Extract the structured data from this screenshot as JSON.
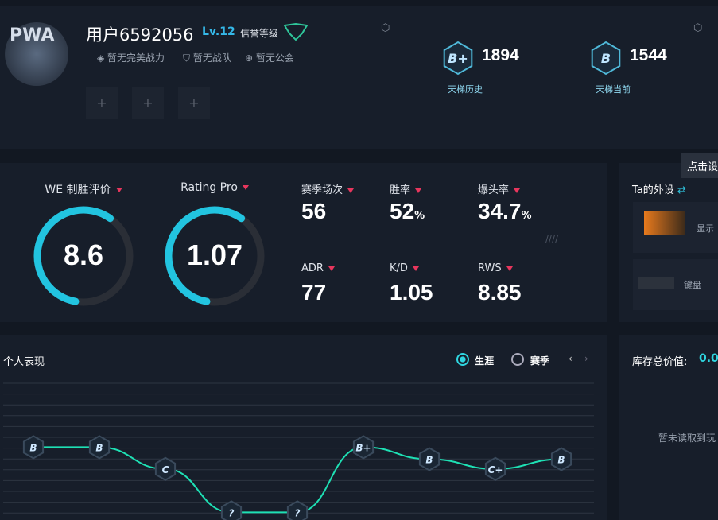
{
  "profile": {
    "avatar_text": "PWA",
    "name": "用户6592056",
    "level": "Lv.12",
    "reputation": "信誉等级",
    "tags": [
      "暂无完美战力",
      "暂无战队",
      "暂无公会"
    ]
  },
  "ladder": [
    {
      "grade": "B+",
      "score": "1894",
      "label": "天梯历史"
    },
    {
      "grade": "B",
      "score": "1544",
      "label": "天梯当前"
    }
  ],
  "ratings": [
    {
      "label": "WE 制胜评价",
      "value": "8.6"
    },
    {
      "label": "Rating Pro",
      "value": "1.07"
    }
  ],
  "stats": [
    {
      "label": "赛季场次",
      "value": "56"
    },
    {
      "label": "胜率",
      "value": "52",
      "unit": "%"
    },
    {
      "label": "爆头率",
      "value": "34.7",
      "unit": "%"
    },
    {
      "label": "ADR",
      "value": "77"
    },
    {
      "label": "K/D",
      "value": "1.05"
    },
    {
      "label": "RWS",
      "value": "8.85"
    }
  ],
  "gear": {
    "title": "Ta的外设",
    "tooltip": "点击设",
    "items": [
      "显示",
      "键盘"
    ]
  },
  "inventory": {
    "label": "库存总价值:",
    "value": "0.0",
    "empty": "暂未读取到玩"
  },
  "chart_data": {
    "type": "line",
    "title": "个人表现",
    "tabs": [
      "生涯",
      "赛季"
    ],
    "ylim": [
      0,
      12
    ],
    "color": "#1ee0b4",
    "series": [
      {
        "values": [
          6.7,
          6.7,
          4.7,
          0.7,
          0.7,
          6.7,
          5.6,
          4.7,
          5.6
        ],
        "point_labels": [
          "B",
          "B",
          "C",
          "?",
          "?",
          "B+",
          "B",
          "C+",
          "B"
        ]
      }
    ]
  }
}
